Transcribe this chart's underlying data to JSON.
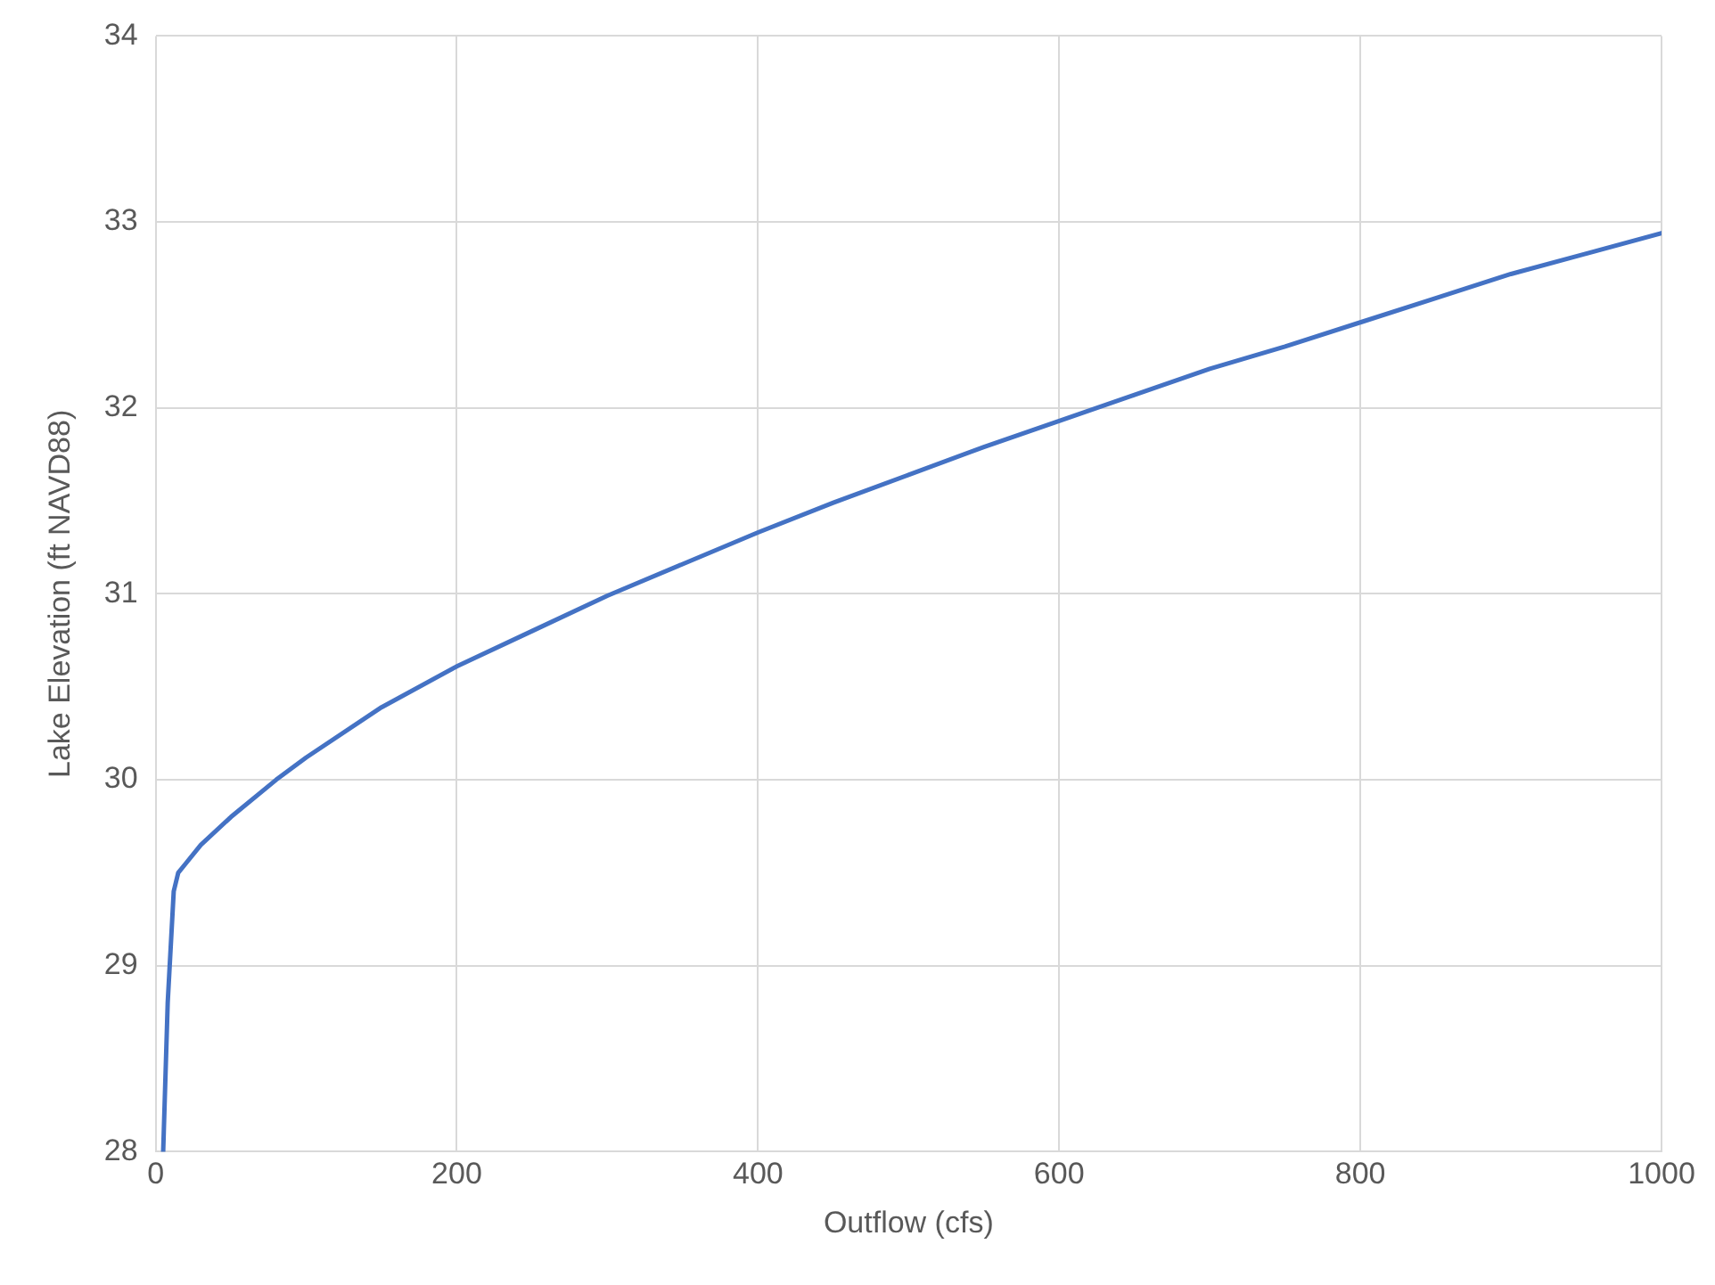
{
  "chart_data": {
    "type": "line",
    "xlabel": "Outflow (cfs)",
    "ylabel": "Lake Elevation (ft NAVD88)",
    "x": [
      5,
      8,
      12,
      15,
      20,
      30,
      50,
      80,
      100,
      150,
      200,
      250,
      300,
      350,
      400,
      450,
      500,
      550,
      600,
      650,
      700,
      750,
      800,
      850,
      900,
      950,
      1000
    ],
    "series": [
      {
        "color": "#4472c4",
        "values": [
          28,
          28.8,
          29.4,
          29.5,
          29.55,
          29.65,
          29.8,
          30,
          30.12,
          30.39,
          30.61,
          30.8,
          30.99,
          31.16,
          31.33,
          31.49,
          31.64,
          31.79,
          31.93,
          32.07,
          32.21,
          32.33,
          32.46,
          32.59,
          32.72,
          32.83,
          32.94
        ]
      }
    ],
    "xlim": [
      0,
      1000
    ],
    "xticks": [
      0,
      200,
      400,
      600,
      800,
      1000
    ],
    "ylim": [
      28,
      34
    ],
    "yticks": [
      28,
      29,
      30,
      31,
      32,
      33,
      34
    ],
    "grid": true,
    "legend": false,
    "marker": "none",
    "line_style": "solid"
  }
}
